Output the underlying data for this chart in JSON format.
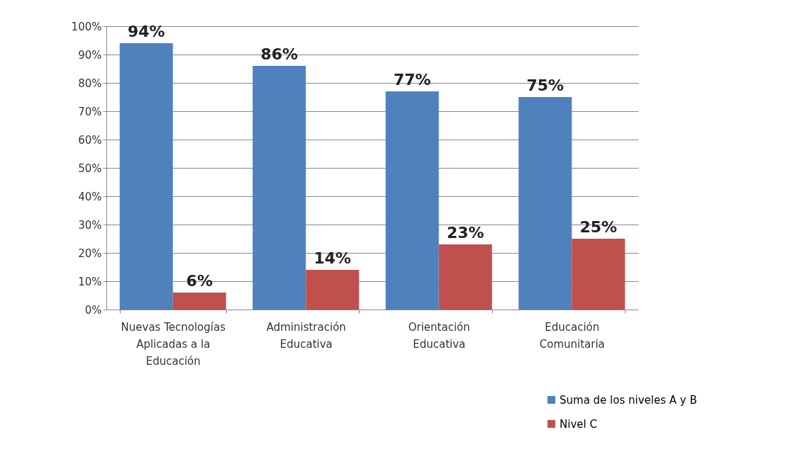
{
  "chart_data": {
    "type": "bar",
    "categories": [
      "Nuevas Tecnologías Aplicadas a la Educación",
      "Administración Educativa",
      "Orientación Educativa",
      "Educación Comunitaria"
    ],
    "series": [
      {
        "name": "Suma de los niveles A y B",
        "color": "#4f81bd",
        "values": [
          94,
          86,
          77,
          75
        ],
        "value_labels": [
          "94%",
          "86%",
          "77%",
          "75%"
        ]
      },
      {
        "name": "Nivel C",
        "color": "#c0504d",
        "values": [
          6,
          14,
          23,
          25
        ],
        "value_labels": [
          "6%",
          "14%",
          "23%",
          "25%"
        ]
      }
    ],
    "ylim": [
      0,
      100
    ],
    "yticks": [
      {
        "value": 0,
        "label": "0%"
      },
      {
        "value": 10,
        "label": "10%"
      },
      {
        "value": 20,
        "label": "20%"
      },
      {
        "value": 30,
        "label": "30%"
      },
      {
        "value": 40,
        "label": "40%"
      },
      {
        "value": 50,
        "label": "50%"
      },
      {
        "value": 60,
        "label": "60%"
      },
      {
        "value": 70,
        "label": "70%"
      },
      {
        "value": 80,
        "label": "80%"
      },
      {
        "value": 90,
        "label": "90%"
      },
      {
        "value": 100,
        "label": "100%"
      }
    ],
    "grid": "y",
    "legend": "bottom right"
  }
}
